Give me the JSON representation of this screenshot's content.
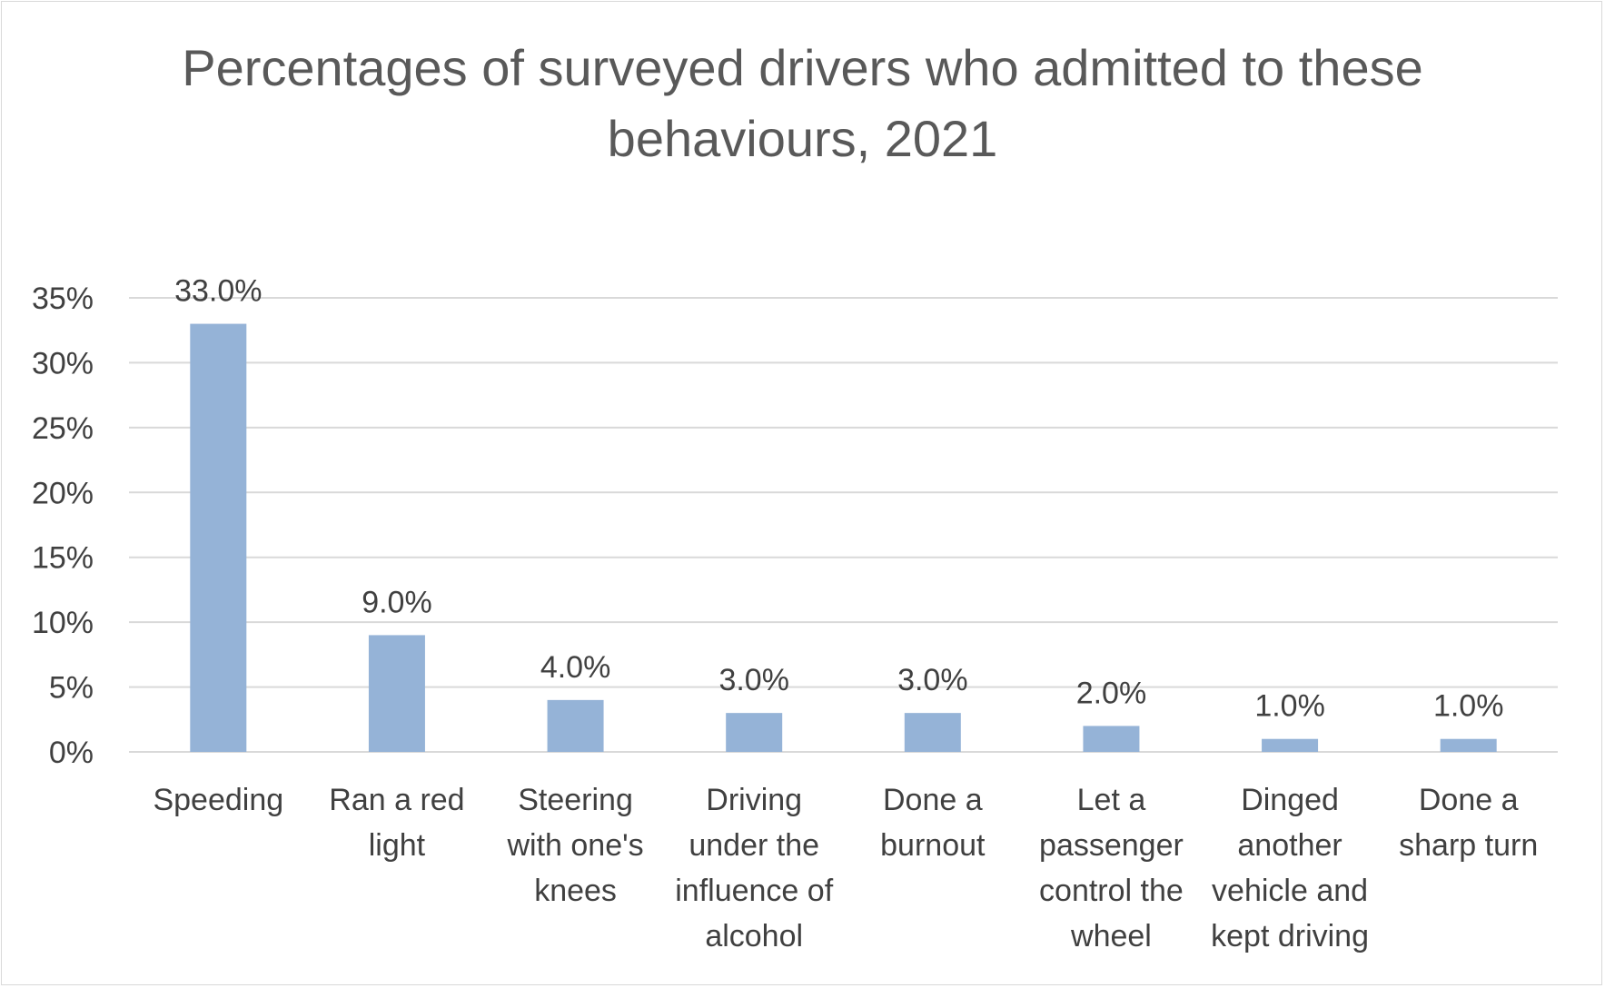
{
  "chart_data": {
    "type": "bar",
    "title": "Percentages of surveyed drivers who admitted to these\nbehaviours, 2021",
    "categories": [
      "Speeding",
      "Ran a red light",
      "Steering with one's knees",
      "Driving under the influence of alcohol",
      "Done a burnout",
      "Let a passenger control the wheel",
      "Dinged another vehicle and kept driving",
      "Done a sharp turn"
    ],
    "category_lines": [
      [
        "Speeding"
      ],
      [
        "Ran a red",
        "light"
      ],
      [
        "Steering",
        "with one's",
        "knees"
      ],
      [
        "Driving",
        "under the",
        "influence of",
        "alcohol"
      ],
      [
        "Done a",
        "burnout"
      ],
      [
        "Let a",
        "passenger",
        "control the",
        "wheel"
      ],
      [
        "Dinged",
        "another",
        "vehicle and",
        "kept driving"
      ],
      [
        "Done a",
        "sharp turn"
      ]
    ],
    "values": [
      33.0,
      9.0,
      4.0,
      3.0,
      3.0,
      2.0,
      1.0,
      1.0
    ],
    "data_labels": [
      "33.0%",
      "9.0%",
      "4.0%",
      "3.0%",
      "3.0%",
      "2.0%",
      "1.0%",
      "1.0%"
    ],
    "yticks": [
      "0%",
      "5%",
      "10%",
      "15%",
      "20%",
      "25%",
      "30%",
      "35%"
    ],
    "ylim": [
      0,
      35
    ],
    "xlabel": "",
    "ylabel": "",
    "grid": true,
    "legend": "none",
    "colors": {
      "bar": "#95b3d7",
      "grid": "#d9d9d9",
      "text": "#404040",
      "title": "#595959"
    }
  }
}
